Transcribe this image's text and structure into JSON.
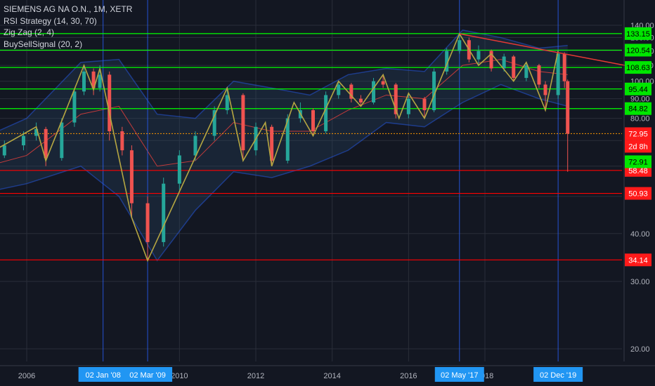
{
  "legend": {
    "symbol": "SIEMENS AG NA O.N., 1M, XETR",
    "studies": [
      "RSI Strategy (14, 30, 70)",
      "Zig Zag (2, 4)",
      "BuySellSignal (20, 2)"
    ]
  },
  "colors": {
    "background": "#131722",
    "grid": "#2a2e39",
    "axis_text": "#b2b5be",
    "up_candle": "#26a69a",
    "down_candle": "#ef5350",
    "zigzag": "#b5a642",
    "band_fill": "#2a4a6a",
    "band_line": "#2962ff",
    "basis_line": "#c33b3b",
    "level_green": "#00ff00",
    "level_red": "#ff0000",
    "vline": "#2962ff",
    "current_price": "#ff9800",
    "trendline": "#e53935"
  },
  "chart_data": {
    "type": "candlestick",
    "title": "SIEMENS AG NA O.N., 1M, XETR",
    "y_ticks": [
      "140.00",
      "130.00",
      "120.00",
      "110.00",
      "100.00",
      "90.00",
      "80.00",
      "70.00",
      "60.00",
      "50.00",
      "40.00",
      "30.00",
      "20.00"
    ],
    "x_ticks": [
      "2006",
      "2010",
      "2012",
      "2014",
      "2016",
      "2018"
    ],
    "vertical_markers": [
      "02 Jan '08",
      "02 Mar '09",
      "02 May '17",
      "02 Dec '19"
    ],
    "horizontal_levels": [
      {
        "value": 133.15,
        "label": "133.15",
        "color": "green"
      },
      {
        "value": 120.54,
        "label": "120.54",
        "color": "green"
      },
      {
        "value": 108.63,
        "label": "108.63",
        "color": "green"
      },
      {
        "value": 95.44,
        "label": "95.44",
        "color": "green"
      },
      {
        "value": 84.82,
        "label": "84.82",
        "color": "green"
      },
      {
        "value": 58.48,
        "label": "58.48",
        "color": "red"
      },
      {
        "value": 50.93,
        "label": "50.93",
        "color": "red"
      },
      {
        "value": 34.14,
        "label": "34.14",
        "color": "red"
      }
    ],
    "current_price": {
      "value": 72.95,
      "label": "72.95"
    },
    "countdown": {
      "label": "2d 8h"
    },
    "extra_price": {
      "value": 72.91,
      "label": "72.91"
    },
    "zigzag_points": [
      {
        "t": "2004-06",
        "v": 60
      },
      {
        "t": "2006-04",
        "v": 76
      },
      {
        "t": "2006-07",
        "v": 62
      },
      {
        "t": "2007-07",
        "v": 110
      },
      {
        "t": "2007-10",
        "v": 95
      },
      {
        "t": "2007-12",
        "v": 108
      },
      {
        "t": "2008-10",
        "v": 44
      },
      {
        "t": "2009-03",
        "v": 34
      },
      {
        "t": "2011-04",
        "v": 96
      },
      {
        "t": "2011-09",
        "v": 62
      },
      {
        "t": "2012-04",
        "v": 78
      },
      {
        "t": "2012-06",
        "v": 60
      },
      {
        "t": "2013-01",
        "v": 88
      },
      {
        "t": "2013-07",
        "v": 72
      },
      {
        "t": "2014-03",
        "v": 100
      },
      {
        "t": "2014-10",
        "v": 86
      },
      {
        "t": "2015-05",
        "v": 104
      },
      {
        "t": "2015-10",
        "v": 80
      },
      {
        "t": "2016-01",
        "v": 93
      },
      {
        "t": "2016-06",
        "v": 80
      },
      {
        "t": "2017-05",
        "v": 133
      },
      {
        "t": "2017-11",
        "v": 110
      },
      {
        "t": "2018-03",
        "v": 118
      },
      {
        "t": "2018-10",
        "v": 100
      },
      {
        "t": "2019-02",
        "v": 112
      },
      {
        "t": "2019-08",
        "v": 84
      },
      {
        "t": "2019-12",
        "v": 120
      }
    ],
    "candles": [
      {
        "t": "2004-06",
        "o": 60,
        "h": 63,
        "l": 58,
        "c": 62
      },
      {
        "t": "2004-12",
        "o": 62,
        "h": 66,
        "l": 60,
        "c": 64
      },
      {
        "t": "2005-06",
        "o": 64,
        "h": 70,
        "l": 63,
        "c": 68
      },
      {
        "t": "2005-12",
        "o": 68,
        "h": 74,
        "l": 66,
        "c": 72
      },
      {
        "t": "2006-04",
        "o": 72,
        "h": 78,
        "l": 70,
        "c": 75
      },
      {
        "t": "2006-07",
        "o": 75,
        "h": 76,
        "l": 60,
        "c": 63
      },
      {
        "t": "2006-12",
        "o": 63,
        "h": 80,
        "l": 62,
        "c": 78
      },
      {
        "t": "2007-04",
        "o": 78,
        "h": 96,
        "l": 76,
        "c": 94
      },
      {
        "t": "2007-07",
        "o": 94,
        "h": 110,
        "l": 92,
        "c": 106
      },
      {
        "t": "2007-10",
        "o": 106,
        "h": 108,
        "l": 92,
        "c": 96
      },
      {
        "t": "2007-12",
        "o": 96,
        "h": 110,
        "l": 94,
        "c": 104
      },
      {
        "t": "2008-03",
        "o": 104,
        "h": 106,
        "l": 70,
        "c": 74
      },
      {
        "t": "2008-07",
        "o": 74,
        "h": 76,
        "l": 64,
        "c": 66
      },
      {
        "t": "2008-10",
        "o": 66,
        "h": 68,
        "l": 44,
        "c": 48
      },
      {
        "t": "2009-03",
        "o": 48,
        "h": 50,
        "l": 34,
        "c": 38
      },
      {
        "t": "2009-08",
        "o": 38,
        "h": 56,
        "l": 37,
        "c": 54
      },
      {
        "t": "2010-01",
        "o": 54,
        "h": 66,
        "l": 52,
        "c": 64
      },
      {
        "t": "2010-06",
        "o": 64,
        "h": 74,
        "l": 62,
        "c": 72
      },
      {
        "t": "2010-12",
        "o": 72,
        "h": 86,
        "l": 70,
        "c": 84
      },
      {
        "t": "2011-04",
        "o": 84,
        "h": 96,
        "l": 82,
        "c": 92
      },
      {
        "t": "2011-09",
        "o": 92,
        "h": 93,
        "l": 62,
        "c": 66
      },
      {
        "t": "2012-01",
        "o": 66,
        "h": 78,
        "l": 64,
        "c": 76
      },
      {
        "t": "2012-06",
        "o": 76,
        "h": 77,
        "l": 60,
        "c": 62
      },
      {
        "t": "2012-11",
        "o": 62,
        "h": 82,
        "l": 61,
        "c": 80
      },
      {
        "t": "2013-03",
        "o": 80,
        "h": 88,
        "l": 78,
        "c": 84
      },
      {
        "t": "2013-07",
        "o": 84,
        "h": 85,
        "l": 72,
        "c": 74
      },
      {
        "t": "2013-11",
        "o": 74,
        "h": 94,
        "l": 73,
        "c": 92
      },
      {
        "t": "2014-03",
        "o": 92,
        "h": 100,
        "l": 90,
        "c": 98
      },
      {
        "t": "2014-07",
        "o": 98,
        "h": 99,
        "l": 88,
        "c": 90
      },
      {
        "t": "2014-10",
        "o": 90,
        "h": 92,
        "l": 86,
        "c": 88
      },
      {
        "t": "2015-02",
        "o": 88,
        "h": 102,
        "l": 87,
        "c": 100
      },
      {
        "t": "2015-05",
        "o": 100,
        "h": 104,
        "l": 96,
        "c": 98
      },
      {
        "t": "2015-09",
        "o": 98,
        "h": 99,
        "l": 80,
        "c": 82
      },
      {
        "t": "2016-01",
        "o": 82,
        "h": 93,
        "l": 80,
        "c": 90
      },
      {
        "t": "2016-06",
        "o": 90,
        "h": 91,
        "l": 80,
        "c": 84
      },
      {
        "t": "2016-09",
        "o": 84,
        "h": 108,
        "l": 83,
        "c": 106
      },
      {
        "t": "2017-01",
        "o": 106,
        "h": 122,
        "l": 104,
        "c": 120
      },
      {
        "t": "2017-05",
        "o": 120,
        "h": 133,
        "l": 118,
        "c": 128
      },
      {
        "t": "2017-08",
        "o": 128,
        "h": 130,
        "l": 112,
        "c": 114
      },
      {
        "t": "2017-11",
        "o": 114,
        "h": 124,
        "l": 110,
        "c": 120
      },
      {
        "t": "2018-03",
        "o": 120,
        "h": 121,
        "l": 106,
        "c": 108
      },
      {
        "t": "2018-07",
        "o": 108,
        "h": 118,
        "l": 106,
        "c": 116
      },
      {
        "t": "2018-10",
        "o": 116,
        "h": 117,
        "l": 100,
        "c": 102
      },
      {
        "t": "2019-02",
        "o": 102,
        "h": 112,
        "l": 100,
        "c": 110
      },
      {
        "t": "2019-06",
        "o": 110,
        "h": 111,
        "l": 96,
        "c": 98
      },
      {
        "t": "2019-08",
        "o": 98,
        "h": 100,
        "l": 84,
        "c": 92
      },
      {
        "t": "2019-12",
        "o": 92,
        "h": 120,
        "l": 90,
        "c": 118
      },
      {
        "t": "2020-02",
        "o": 118,
        "h": 119,
        "l": 96,
        "c": 100
      },
      {
        "t": "2020-03",
        "o": 100,
        "h": 101,
        "l": 58,
        "c": 72.95
      }
    ],
    "basis_line": [
      {
        "t": "2004-06",
        "v": 58
      },
      {
        "t": "2006-01",
        "v": 64
      },
      {
        "t": "2007-06",
        "v": 82
      },
      {
        "t": "2008-06",
        "v": 86
      },
      {
        "t": "2009-06",
        "v": 60
      },
      {
        "t": "2010-06",
        "v": 62
      },
      {
        "t": "2011-06",
        "v": 78
      },
      {
        "t": "2012-06",
        "v": 74
      },
      {
        "t": "2013-06",
        "v": 74
      },
      {
        "t": "2014-06",
        "v": 84
      },
      {
        "t": "2015-06",
        "v": 92
      },
      {
        "t": "2016-06",
        "v": 90
      },
      {
        "t": "2017-06",
        "v": 110
      },
      {
        "t": "2018-06",
        "v": 114
      },
      {
        "t": "2019-06",
        "v": 106
      },
      {
        "t": "2020-03",
        "v": 104
      }
    ],
    "upper_band": [
      {
        "t": "2004-06",
        "v": 68
      },
      {
        "t": "2006-01",
        "v": 80
      },
      {
        "t": "2007-06",
        "v": 112
      },
      {
        "t": "2008-06",
        "v": 114
      },
      {
        "t": "2009-06",
        "v": 82
      },
      {
        "t": "2010-06",
        "v": 80
      },
      {
        "t": "2011-06",
        "v": 100
      },
      {
        "t": "2012-06",
        "v": 96
      },
      {
        "t": "2013-06",
        "v": 92
      },
      {
        "t": "2014-06",
        "v": 104
      },
      {
        "t": "2015-06",
        "v": 108
      },
      {
        "t": "2016-06",
        "v": 106
      },
      {
        "t": "2017-06",
        "v": 136
      },
      {
        "t": "2018-06",
        "v": 130
      },
      {
        "t": "2019-06",
        "v": 122
      },
      {
        "t": "2020-03",
        "v": 124
      }
    ],
    "lower_band": [
      {
        "t": "2004-06",
        "v": 50
      },
      {
        "t": "2006-01",
        "v": 54
      },
      {
        "t": "2007-06",
        "v": 60
      },
      {
        "t": "2008-06",
        "v": 50
      },
      {
        "t": "2009-06",
        "v": 34
      },
      {
        "t": "2010-06",
        "v": 46
      },
      {
        "t": "2011-06",
        "v": 58
      },
      {
        "t": "2012-06",
        "v": 56
      },
      {
        "t": "2013-06",
        "v": 60
      },
      {
        "t": "2014-06",
        "v": 66
      },
      {
        "t": "2015-06",
        "v": 78
      },
      {
        "t": "2016-06",
        "v": 76
      },
      {
        "t": "2017-06",
        "v": 88
      },
      {
        "t": "2018-06",
        "v": 98
      },
      {
        "t": "2019-06",
        "v": 90
      },
      {
        "t": "2020-03",
        "v": 86
      }
    ],
    "trendline": [
      {
        "t": "2017-05",
        "v": 133
      },
      {
        "t": "2021-09",
        "v": 110
      }
    ]
  }
}
